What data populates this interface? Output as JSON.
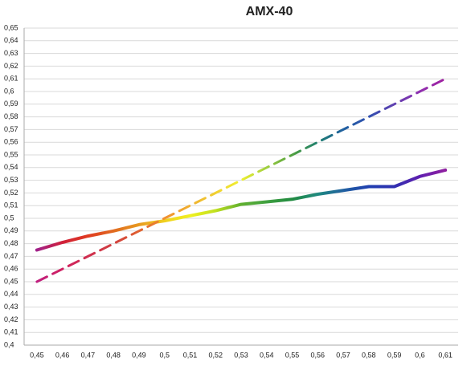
{
  "chart_data": {
    "type": "line",
    "title": "AMX-40",
    "categories": [
      "0,45",
      "0,46",
      "0,47",
      "0,48",
      "0,49",
      "0,5",
      "0,51",
      "0,52",
      "0,53",
      "0,54",
      "0,55",
      "0,56",
      "0,57",
      "0,58",
      "0,59",
      "0,6",
      "0,61"
    ],
    "series": [
      {
        "values": [
          0.475,
          0.481,
          0.486,
          0.49,
          0.495,
          0.498,
          0.502,
          0.506,
          0.511,
          0.513,
          0.515,
          0.519,
          0.522,
          0.525,
          0.525,
          0.533,
          0.538
        ],
        "colors": [
          "#a0208a",
          "#d0203a",
          "#e03a20",
          "#e06a20",
          "#e89a20",
          "#f0d020",
          "#f0f020",
          "#c0e020",
          "#60b030",
          "#40a040",
          "#208a40",
          "#208a80",
          "#2060a0",
          "#2040b0",
          "#3030b0",
          "#6020b0",
          "#9020a0"
        ],
        "dashed": false
      },
      {
        "values": [
          0.45,
          0.46,
          0.47,
          0.48,
          0.49,
          0.5,
          0.51,
          0.52,
          0.53,
          0.54,
          0.55,
          0.56,
          0.57,
          0.58,
          0.59,
          0.6,
          0.61
        ],
        "colors": [
          "#c02080",
          "#d02060",
          "#d03050",
          "#d04040",
          "#e06030",
          "#f09030",
          "#f0b030",
          "#f0d030",
          "#f0f030",
          "#a0d040",
          "#50a040",
          "#208070",
          "#2060a0",
          "#3050b0",
          "#6040b0",
          "#9030b0",
          "#a020a0"
        ],
        "dashed": true
      }
    ],
    "ylim": [
      0.4,
      0.65
    ],
    "yticks": [
      {
        "value": 0.4,
        "label": "0,4"
      },
      {
        "value": 0.41,
        "label": "0,41"
      },
      {
        "value": 0.42,
        "label": "0,42"
      },
      {
        "value": 0.43,
        "label": "0,43"
      },
      {
        "value": 0.44,
        "label": "0,44"
      },
      {
        "value": 0.45,
        "label": "0,45"
      },
      {
        "value": 0.46,
        "label": "0,46"
      },
      {
        "value": 0.47,
        "label": "0,47"
      },
      {
        "value": 0.48,
        "label": "0,48"
      },
      {
        "value": 0.49,
        "label": "0,49"
      },
      {
        "value": 0.5,
        "label": "0,5"
      },
      {
        "value": 0.51,
        "label": "0,51"
      },
      {
        "value": 0.52,
        "label": "0,52"
      },
      {
        "value": 0.53,
        "label": "0,53"
      },
      {
        "value": 0.54,
        "label": "0,54"
      },
      {
        "value": 0.55,
        "label": "0,55"
      },
      {
        "value": 0.56,
        "label": "0,56"
      },
      {
        "value": 0.57,
        "label": "0,57"
      },
      {
        "value": 0.58,
        "label": "0,58"
      },
      {
        "value": 0.59,
        "label": "0,59"
      },
      {
        "value": 0.6,
        "label": "0,6"
      },
      {
        "value": 0.61,
        "label": "0,61"
      },
      {
        "value": 0.62,
        "label": "0,62"
      },
      {
        "value": 0.63,
        "label": "0,63"
      },
      {
        "value": 0.64,
        "label": "0,64"
      },
      {
        "value": 0.65,
        "label": "0,65"
      }
    ],
    "grid": true
  }
}
